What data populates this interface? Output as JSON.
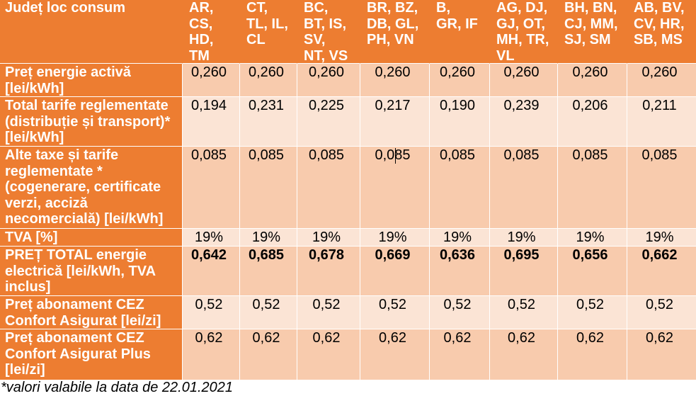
{
  "chart_data": {
    "type": "table",
    "corner_header": "Județ loc consum",
    "columns": [
      "AR,\nCS,\nHD,\nTM",
      "CT,\nTL, IL,\nCL",
      "BC,\nBT, IS,\nSV,\nNT, VS",
      "BR, BZ,\nDB, GL,\nPH, VN",
      "B,\nGR, IF",
      "AG, DJ,\nGJ, OT,\nMH, TR,\nVL",
      "BH, BN,\nCJ, MM,\nSJ, SM",
      "AB, BV,\nCV, HR,\nSB, MS"
    ],
    "rows": [
      {
        "label": "Preț energie activă\n[lei/kWh]",
        "values": [
          "0,260",
          "0,260",
          "0,260",
          "0,260",
          "0,260",
          "0,260",
          "0,260",
          "0,260"
        ]
      },
      {
        "label": "Total tarife reglementate\n(distribuție și transport)*\n[lei/kWh]",
        "values": [
          "0,194",
          "0,231",
          "0,225",
          "0,217",
          "0,190",
          "0,239",
          "0,206",
          "0,211"
        ]
      },
      {
        "label": "Alte taxe și tarife\nreglementate *\n(cogenerare, certificate\nverzi, acciză\nnecomercială) [lei/kWh]",
        "values": [
          "0,085",
          "0,085",
          "0,085",
          "0,085",
          "0,085",
          "0,085",
          "0,085",
          "0,085"
        ]
      },
      {
        "label": "TVA [%]",
        "values": [
          "19%",
          "19%",
          "19%",
          "19%",
          "19%",
          "19%",
          "19%",
          "19%"
        ]
      },
      {
        "label": "PREȚ TOTAL energie\nelectrică [lei/kWh, TVA\ninclus]",
        "values": [
          "0,642",
          "0,685",
          "0,678",
          "0,669",
          "0,636",
          "0,695",
          "0,656",
          "0,662"
        ]
      },
      {
        "label": "Preț abonament CEZ\nConfort Asigurat [lei/zi]",
        "values": [
          "0,52",
          "0,52",
          "0,52",
          "0,52",
          "0,52",
          "0,52",
          "0,52",
          "0,52"
        ]
      },
      {
        "label": "Preț abonament CEZ\nConfort Asigurat Plus\n[lei/zi]",
        "values": [
          "0,62",
          "0,62",
          "0,62",
          "0,62",
          "0,62",
          "0,62",
          "0,62",
          "0,62"
        ]
      }
    ],
    "footnote": "*valori valabile la data de 22.01.2021"
  },
  "colors": {
    "header_orange": "#ED7D31",
    "band_dark": "#F8CBAD",
    "band_light": "#FBE4D5",
    "grid_line": "#FFFFFF"
  }
}
